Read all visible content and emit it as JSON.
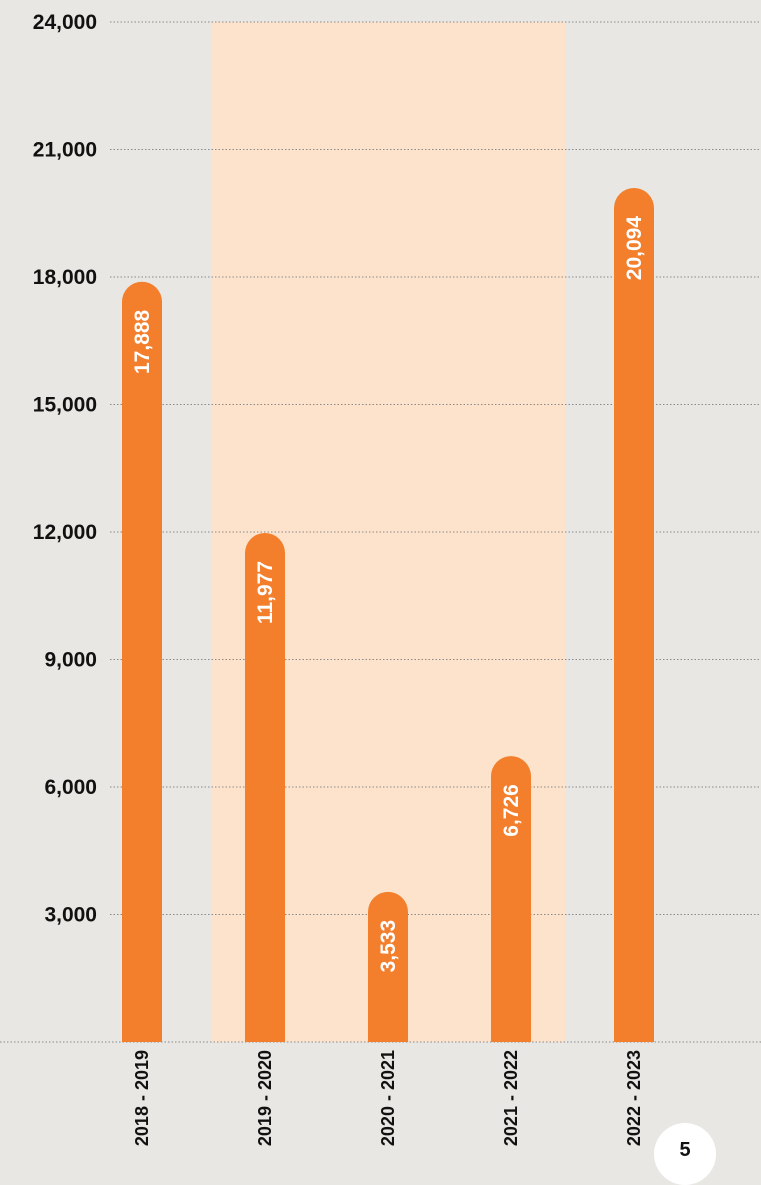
{
  "colors": {
    "background": "#e8e7e4",
    "bar": "#f37f2c",
    "highlight_band": "#fde3cc",
    "gridline": "#8a8a8a",
    "text": "#111111",
    "bar_label": "#ffffff"
  },
  "page_number": "5",
  "chart_data": {
    "type": "bar",
    "orientation": "vertical",
    "categories": [
      "2018 - 2019",
      "2019 - 2020",
      "2020 - 2021",
      "2021 - 2022",
      "2022 - 2023"
    ],
    "series": [
      {
        "values": [
          17888,
          11977,
          3533,
          6726,
          20094
        ]
      }
    ],
    "data_labels": [
      "17,888",
      "11,977",
      "3,533",
      "6,726",
      "20,094"
    ],
    "ylim": [
      0,
      24000
    ],
    "yticks": [
      3000,
      6000,
      9000,
      12000,
      15000,
      18000,
      21000,
      24000
    ],
    "ytick_labels": [
      "3,000",
      "6,000",
      "9,000",
      "12,000",
      "15,000",
      "18,000",
      "21,000",
      "24,000"
    ],
    "highlighted_categories": [
      "2019 - 2020",
      "2020 - 2021",
      "2021 - 2022"
    ],
    "grid": true,
    "gridline_style": "dotted",
    "title": "",
    "xlabel": "",
    "ylabel": ""
  }
}
